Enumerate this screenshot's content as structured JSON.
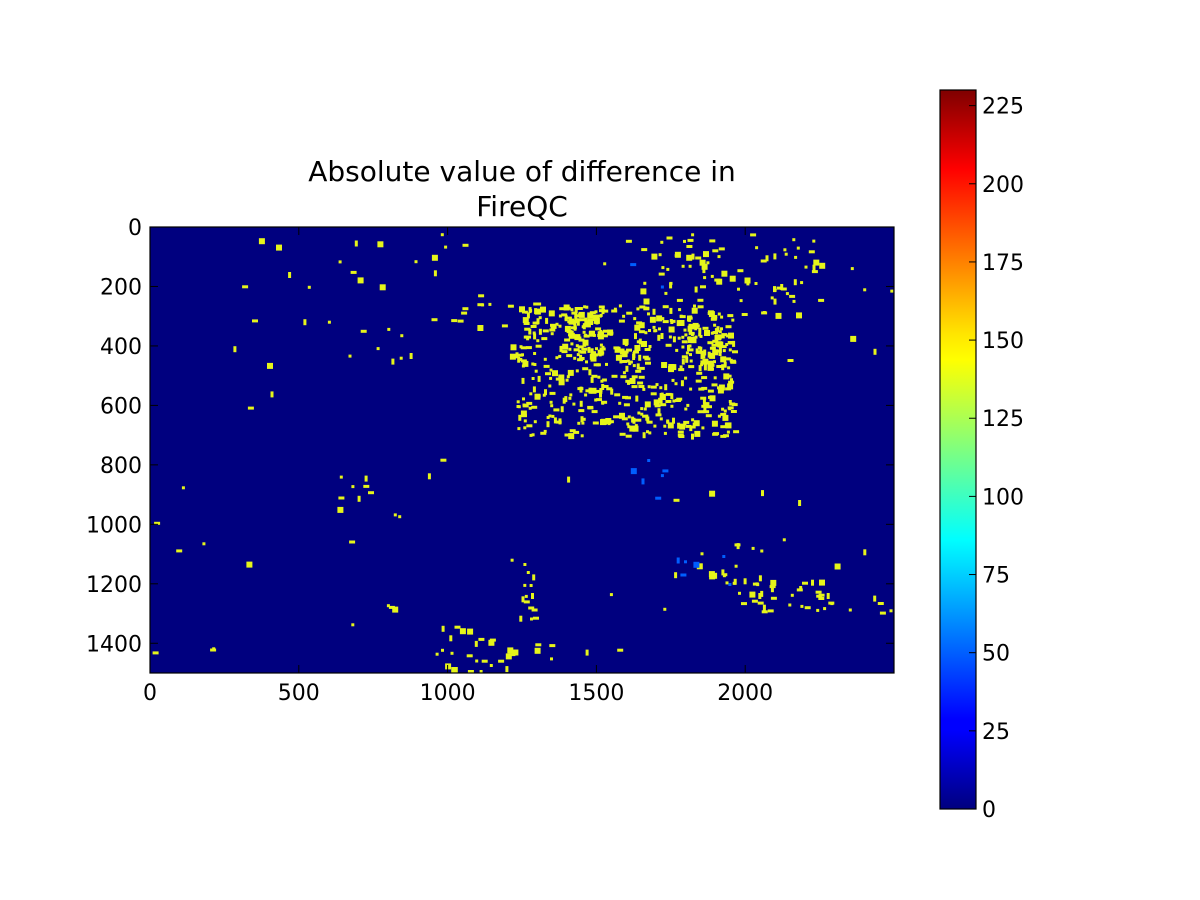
{
  "chart_data": {
    "type": "heatmap",
    "title_lines": [
      "Absolute value of difference in",
      "FireQC"
    ],
    "xlabel": "",
    "ylabel": "",
    "xlim": [
      0,
      2500
    ],
    "ylim": [
      1500,
      0
    ],
    "x_ticks": [
      0,
      500,
      1000,
      1500,
      2000
    ],
    "x_tick_labels": [
      "0",
      "500",
      "1000",
      "1500",
      "2000"
    ],
    "y_ticks": [
      0,
      200,
      400,
      600,
      800,
      1000,
      1200,
      1400
    ],
    "y_tick_labels": [
      "0",
      "200",
      "400",
      "600",
      "800",
      "1000",
      "1200",
      "1400"
    ],
    "colorbar": {
      "colormap": "jet",
      "range": [
        0,
        230
      ],
      "ticks": [
        0,
        25,
        50,
        75,
        100,
        125,
        150,
        175,
        200,
        225
      ],
      "tick_labels": [
        "0",
        "25",
        "50",
        "75",
        "100",
        "125",
        "150",
        "175",
        "200",
        "225"
      ]
    },
    "background_value": 0,
    "colors": {
      "background": "#00007f",
      "dominant_value_color": "#e6f51a"
    },
    "regions": [
      {
        "x": [
          1230,
          1960
        ],
        "y": [
          260,
          700
        ],
        "value": 150,
        "density": 0.16
      },
      {
        "x": [
          1780,
          1950
        ],
        "y": [
          330,
          450
        ],
        "value": 150,
        "density": 0.3
      },
      {
        "x": [
          1400,
          1520
        ],
        "y": [
          260,
          430
        ],
        "value": 150,
        "density": 0.3
      },
      {
        "x": [
          1010,
          1400
        ],
        "y": [
          250,
          330
        ],
        "value": 150,
        "density": 0.06
      },
      {
        "x": [
          1150,
          1270
        ],
        "y": [
          360,
          460
        ],
        "value": 150,
        "density": 0.06
      },
      {
        "x": [
          1640,
          2250
        ],
        "y": [
          10,
          300
        ],
        "value": 150,
        "density": 0.05
      },
      {
        "x": [
          500,
          950
        ],
        "y": [
          300,
          500
        ],
        "value": 150,
        "density": 0.012
      },
      {
        "x": [
          300,
          1000
        ],
        "y": [
          0,
          200
        ],
        "value": 150,
        "density": 0.01
      },
      {
        "x": [
          2220,
          2490
        ],
        "y": [
          1230,
          1300
        ],
        "value": 150,
        "density": 0.06
      },
      {
        "x": [
          1930,
          2250
        ],
        "y": [
          1180,
          1290
        ],
        "value": 150,
        "density": 0.08
      },
      {
        "x": [
          1240,
          1290
        ],
        "y": [
          1130,
          1320
        ],
        "value": 150,
        "density": 0.15
      },
      {
        "x": [
          950,
          1350
        ],
        "y": [
          1340,
          1500
        ],
        "value": 150,
        "density": 0.05
      },
      {
        "x": [
          620,
          740
        ],
        "y": [
          820,
          960
        ],
        "value": 150,
        "density": 0.05
      },
      {
        "x": [
          780,
          900
        ],
        "y": [
          1180,
          1280
        ],
        "value": 150,
        "density": 0.025
      },
      {
        "x": [
          1700,
          2100
        ],
        "y": [
          1050,
          1200
        ],
        "value": 150,
        "density": 0.025
      },
      {
        "x": [
          1600,
          1730
        ],
        "y": [
          780,
          920
        ],
        "value": 50,
        "density": 0.035
      },
      {
        "x": [
          1600,
          1720
        ],
        "y": [
          120,
          200
        ],
        "value": 50,
        "density": 0.02
      },
      {
        "x": [
          1750,
          2050
        ],
        "y": [
          1100,
          1200
        ],
        "value": 50,
        "density": 0.02
      },
      {
        "x": [
          0,
          2500
        ],
        "y": [
          0,
          1500
        ],
        "value": 150,
        "density": 0.0015
      }
    ]
  }
}
